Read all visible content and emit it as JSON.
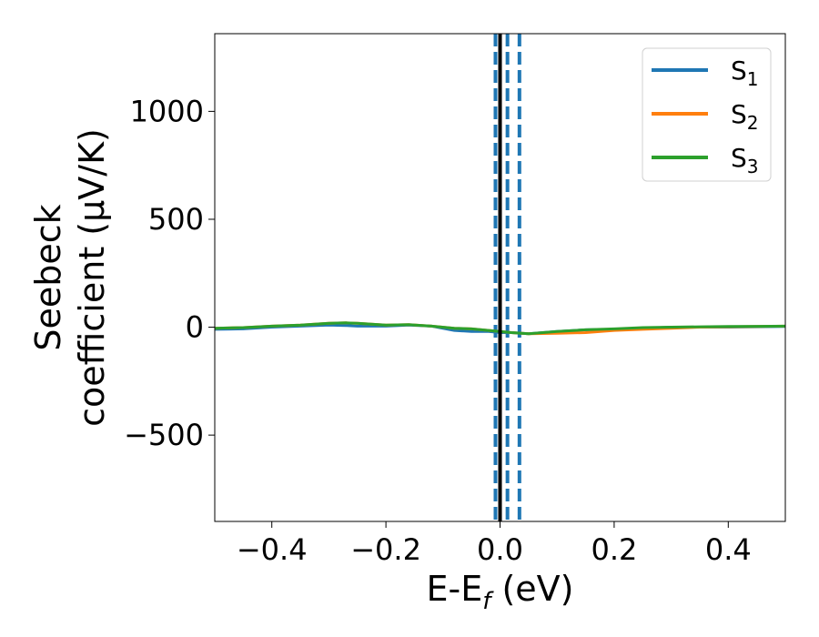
{
  "chart_data": {
    "type": "line",
    "xlabel": {
      "main": "E-E",
      "sub": "f",
      "unit": " (eV)"
    },
    "ylabel": {
      "line1": "Seebeck",
      "line2": "coefficient  (μV/K)"
    },
    "xlim": [
      -0.5,
      0.5
    ],
    "ylim": [
      -900,
      1360
    ],
    "xticks": [
      {
        "value": -0.4,
        "label": "−0.4"
      },
      {
        "value": -0.2,
        "label": "−0.2"
      },
      {
        "value": 0.0,
        "label": "0.0"
      },
      {
        "value": 0.2,
        "label": "0.2"
      },
      {
        "value": 0.4,
        "label": "0.4"
      }
    ],
    "yticks": [
      {
        "value": -500,
        "label": "−500"
      },
      {
        "value": 0,
        "label": "0"
      },
      {
        "value": 500,
        "label": "500"
      },
      {
        "value": 1000,
        "label": "1000"
      }
    ],
    "legend_position": "top-right",
    "series": [
      {
        "name": "S",
        "sub": "1",
        "color": "#1f77b4",
        "x": [
          -0.5,
          -0.45,
          -0.4,
          -0.35,
          -0.3,
          -0.27,
          -0.25,
          -0.2,
          -0.16,
          -0.12,
          -0.08,
          -0.05,
          -0.02,
          0.0,
          0.02,
          0.05,
          0.1,
          0.15,
          0.2,
          0.25,
          0.3,
          0.35,
          0.4,
          0.45,
          0.5
        ],
        "y": [
          -10,
          -8,
          0,
          5,
          10,
          8,
          5,
          5,
          10,
          5,
          -15,
          -20,
          -20,
          -25,
          -25,
          -30,
          -20,
          -12,
          -10,
          -5,
          0,
          0,
          0,
          2,
          3
        ]
      },
      {
        "name": "S",
        "sub": "2",
        "color": "#ff7f0e",
        "x": [
          -0.5,
          -0.45,
          -0.4,
          -0.35,
          -0.3,
          -0.27,
          -0.25,
          -0.2,
          -0.16,
          -0.12,
          -0.08,
          -0.05,
          -0.02,
          0.0,
          0.02,
          0.05,
          0.1,
          0.15,
          0.2,
          0.25,
          0.3,
          0.35,
          0.4,
          0.45,
          0.5
        ],
        "y": [
          -5,
          -2,
          5,
          10,
          18,
          20,
          18,
          10,
          12,
          5,
          -5,
          -8,
          -15,
          -20,
          -25,
          -30,
          -28,
          -25,
          -15,
          -10,
          -5,
          0,
          2,
          3,
          5
        ]
      },
      {
        "name": "S",
        "sub": "3",
        "color": "#2ca02c",
        "x": [
          -0.5,
          -0.45,
          -0.4,
          -0.35,
          -0.3,
          -0.27,
          -0.25,
          -0.2,
          -0.16,
          -0.12,
          -0.08,
          -0.05,
          -0.02,
          0.0,
          0.02,
          0.05,
          0.1,
          0.15,
          0.2,
          0.25,
          0.3,
          0.35,
          0.4,
          0.45,
          0.5
        ],
        "y": [
          -5,
          -2,
          5,
          10,
          18,
          20,
          18,
          10,
          12,
          5,
          -5,
          -8,
          -15,
          -20,
          -25,
          -30,
          -20,
          -12,
          -8,
          -2,
          0,
          2,
          3,
          4,
          5
        ]
      }
    ],
    "vlines": [
      {
        "x": 0.0,
        "color": "#000000",
        "style": "solid"
      },
      {
        "x": -0.008,
        "color": "#1f77b4",
        "style": "dashed"
      },
      {
        "x": 0.013,
        "color": "#1f77b4",
        "style": "dashed"
      },
      {
        "x": 0.034,
        "color": "#1f77b4",
        "style": "dashed"
      }
    ]
  }
}
